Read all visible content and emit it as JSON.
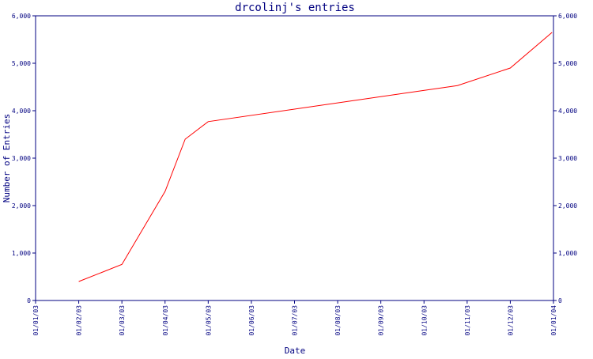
{
  "chart_data": {
    "type": "line",
    "title": "drcolinj's entries",
    "xlabel": "Date",
    "ylabel": "Number of Entries",
    "x_tick_labels": [
      "01/01/03",
      "01/02/03",
      "01/03/03",
      "01/04/03",
      "01/05/03",
      "01/06/03",
      "01/07/03",
      "01/08/03",
      "01/09/03",
      "01/10/03",
      "01/11/03",
      "01/12/03",
      "01/01/04"
    ],
    "y_tick_labels": [
      "0",
      "1,000",
      "2,000",
      "3,000",
      "4,000",
      "5,000",
      "6,000"
    ],
    "ylim": [
      0,
      6000
    ],
    "xlim_months": [
      0,
      12
    ],
    "grid": false,
    "right_axis_mirrors_left": true,
    "colors": {
      "axis": "#000080",
      "line": "#ff0000",
      "background": "#ffffff"
    },
    "series": [
      {
        "values": [
          {
            "x": "2003-02-01",
            "y": 400
          },
          {
            "x": "2003-03-01",
            "y": 760
          },
          {
            "x": "2003-04-01",
            "y": 2300
          },
          {
            "x": "2003-04-15",
            "y": 3400
          },
          {
            "x": "2003-05-01",
            "y": 3770
          },
          {
            "x": "2003-10-25",
            "y": 4530
          },
          {
            "x": "2003-12-01",
            "y": 4900
          },
          {
            "x": "2003-12-31",
            "y": 5650
          }
        ]
      }
    ]
  }
}
